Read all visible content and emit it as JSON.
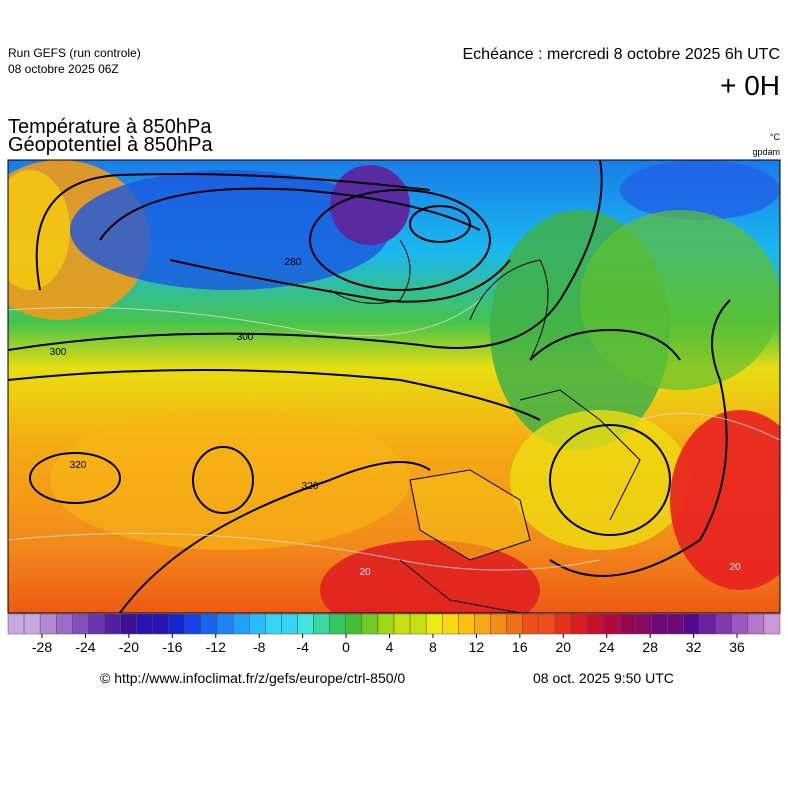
{
  "header": {
    "run": "Run GEFS (run controle)",
    "run_date": "08 octobre 2025 06Z",
    "echeance": "Echéance : mercredi 8 octobre 2025 6h UTC",
    "lead": "+ 0H"
  },
  "titles": {
    "line1": "Température à 850hPa",
    "line2": "Géopotentiel à 850hPa",
    "unit1": "°C",
    "unit2": "gpdam"
  },
  "map": {
    "contour_labels": [
      280,
      300,
      300,
      320,
      320,
      20,
      20
    ]
  },
  "colorbar": {
    "ticks": [
      -28,
      -24,
      -20,
      -16,
      -12,
      -8,
      -4,
      0,
      4,
      8,
      12,
      16,
      20,
      24,
      28,
      32,
      36
    ]
  },
  "footer": {
    "url": "© http://www.infoclimat.fr/z/gefs/europe/ctrl-850/0",
    "date": "08 oct. 2025  9:50 UTC"
  }
}
